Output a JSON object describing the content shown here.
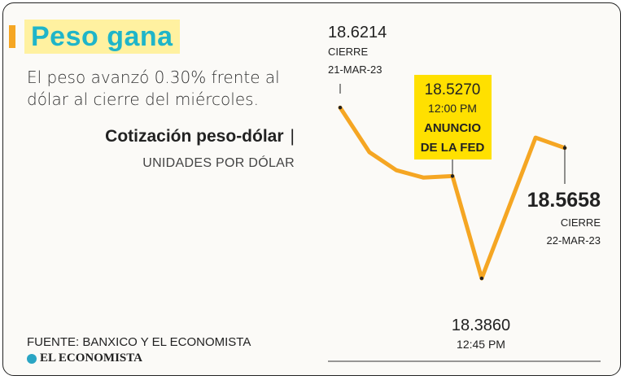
{
  "header": {
    "title": "Peso gana",
    "subtitle": "El peso avanzó 0.30% frente al dólar al cierre del miércoles.",
    "chart_title": "Cotización peso-dólar",
    "chart_title_separator": "|",
    "units": "UNIDADES POR DÓLAR"
  },
  "footer": {
    "source": "FUENTE: BANXICO Y EL ECONOMISTA",
    "brand": "EL ECONOMISTA"
  },
  "colors": {
    "line": "#f5a623",
    "title": "#1fb5c9",
    "highlight": "#ffe000",
    "title_bg": "#fff1a0"
  },
  "annotations": {
    "start": {
      "value": "18.6214",
      "label1": "CIERRE",
      "label2": "21-MAR-23"
    },
    "fed": {
      "value": "18.5270",
      "time": "12:00 PM",
      "label1": "ANUNCIO",
      "label2": "DE LA FED"
    },
    "min": {
      "value": "18.3860",
      "time": "12:45 PM"
    },
    "end": {
      "value": "18.5658",
      "label1": "CIERRE",
      "label2": "22-MAR-23"
    }
  },
  "chart_data": {
    "type": "line",
    "title": "Cotización peso-dólar",
    "ylabel": "UNIDADES POR DÓLAR",
    "series": [
      {
        "values": [
          18.6214,
          18.56,
          18.535,
          18.525,
          18.527,
          18.386,
          18.58,
          18.5658
        ]
      }
    ],
    "ylim": [
      18.35,
      18.65
    ],
    "grid": false
  }
}
